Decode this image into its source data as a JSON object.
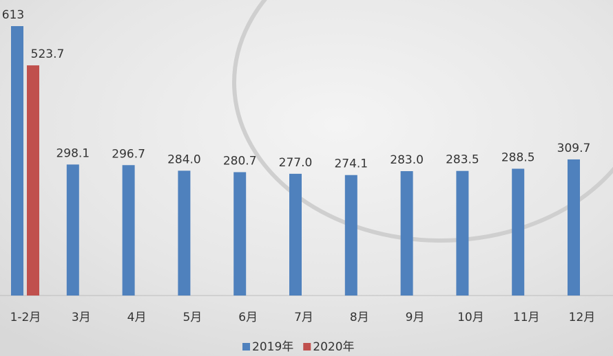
{
  "chart_data": {
    "type": "bar",
    "categories": [
      "1-2月",
      "3月",
      "4月",
      "5月",
      "6月",
      "7月",
      "8月",
      "9月",
      "10月",
      "11月",
      "12月"
    ],
    "series": [
      {
        "name": "2019年",
        "color": "#4f81bd",
        "values": [
          613,
          298.1,
          296.7,
          284.0,
          280.7,
          277.0,
          274.1,
          283.0,
          283.5,
          288.5,
          309.7
        ],
        "value_labels": [
          "613",
          "298.1",
          "296.7",
          "284.0",
          "280.7",
          "277.0",
          "274.1",
          "283.0",
          "283.5",
          "288.5",
          "309.7"
        ]
      },
      {
        "name": "2020年",
        "color": "#c0504d",
        "values": [
          523.7,
          null,
          null,
          null,
          null,
          null,
          null,
          null,
          null,
          null,
          null
        ],
        "value_labels": [
          "523.7",
          null,
          null,
          null,
          null,
          null,
          null,
          null,
          null,
          null,
          null
        ]
      }
    ]
  }
}
